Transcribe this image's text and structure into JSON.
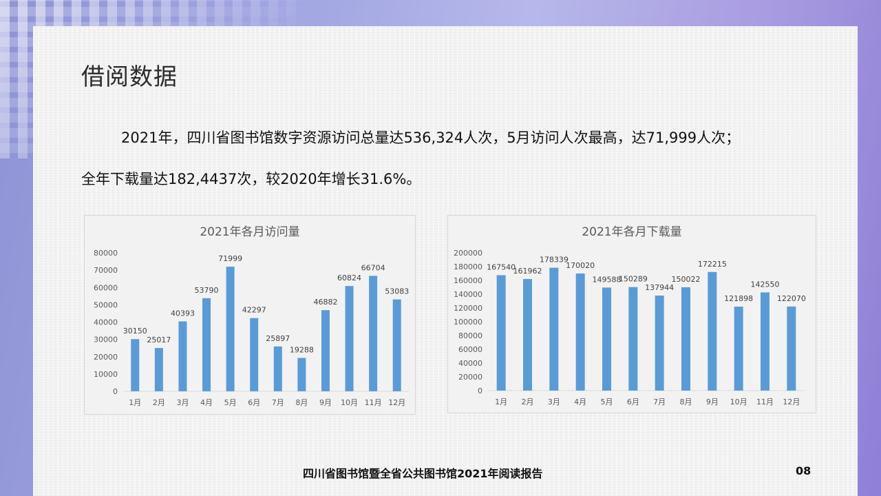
{
  "slide": {
    "title": "借阅数据",
    "paragraph_1": "2021年，四川省图书馆数字资源访问总量达536,324人次，5月访问人次最高，达71,999人次；",
    "paragraph_2": "全年下载量达182,4437次，较2020年增长31.6%。",
    "footer_text": "四川省图书馆暨全省公共图书馆2021年阅读报告",
    "page_number": "08"
  },
  "colors": {
    "bar": "#5b9bd5",
    "axis_text": "#595959",
    "title_text": "#595959",
    "axis_line": "#d9d9d9"
  },
  "chart_data": [
    {
      "type": "bar",
      "title": "2021年各月访问量",
      "categories": [
        "1月",
        "2月",
        "3月",
        "4月",
        "5月",
        "6月",
        "7月",
        "8月",
        "9月",
        "10月",
        "11月",
        "12月"
      ],
      "values": [
        30150,
        25017,
        40393,
        53790,
        71999,
        42297,
        25897,
        19288,
        46882,
        60824,
        66704,
        53083
      ],
      "ylim": [
        0,
        80000
      ],
      "yticks": [
        0,
        10000,
        20000,
        30000,
        40000,
        50000,
        60000,
        70000,
        80000
      ],
      "grid": false,
      "data_labels": true
    },
    {
      "type": "bar",
      "title": "2021年各月下载量",
      "categories": [
        "1月",
        "2月",
        "3月",
        "4月",
        "5月",
        "6月",
        "7月",
        "8月",
        "9月",
        "10月",
        "11月",
        "12月"
      ],
      "values": [
        167540,
        161962,
        178339,
        170020,
        149588,
        150289,
        137944,
        150022,
        172215,
        121898,
        142550,
        122070
      ],
      "ylim": [
        0,
        200000
      ],
      "yticks": [
        0,
        20000,
        40000,
        60000,
        80000,
        100000,
        120000,
        140000,
        160000,
        180000,
        200000
      ],
      "grid": false,
      "data_labels": true
    }
  ]
}
